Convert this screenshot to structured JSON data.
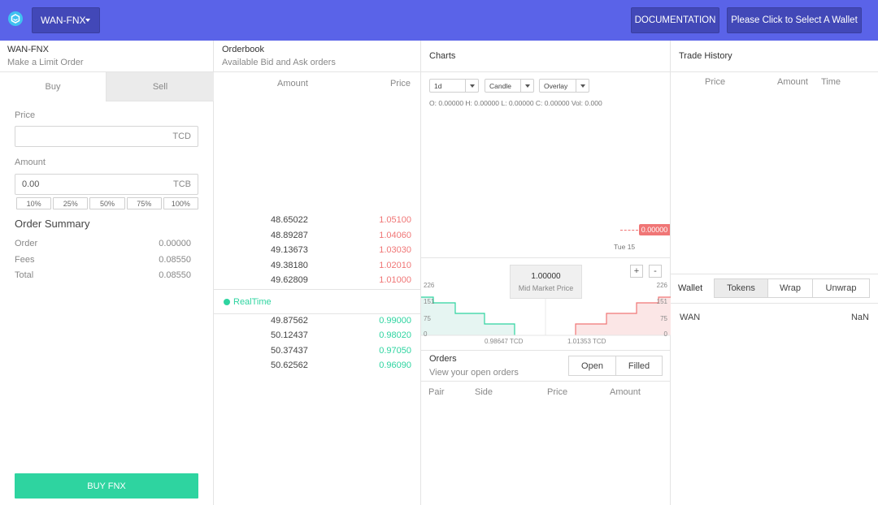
{
  "header": {
    "pair_label": "WAN-FNX",
    "documentation_label": "DOCUMENTATION",
    "wallet_label": "Please Click to Select A Wallet"
  },
  "order_form": {
    "title": "WAN-FNX",
    "subtitle": "Make a Limit Order",
    "tabs": [
      "Buy",
      "Sell"
    ],
    "price_label": "Price",
    "price_value": "",
    "price_unit": "TCD",
    "amount_label": "Amount",
    "amount_value": "0.00",
    "amount_unit": "TCB",
    "percent_buttons": [
      "10%",
      "25%",
      "50%",
      "75%",
      "100%"
    ],
    "summary_title": "Order Summary",
    "summary": [
      {
        "label": "Order",
        "value": "0.00000"
      },
      {
        "label": "Fees",
        "value": "0.08550"
      },
      {
        "label": "Total",
        "value": "0.08550"
      }
    ],
    "submit_label": "BUY FNX"
  },
  "orderbook": {
    "title": "Orderbook",
    "subtitle": "Available Bid and Ask orders",
    "headers": {
      "amount": "Amount",
      "price": "Price"
    },
    "asks": [
      {
        "amount": "48.65022",
        "price": "1.05100"
      },
      {
        "amount": "48.89287",
        "price": "1.04060"
      },
      {
        "amount": "49.13673",
        "price": "1.03030"
      },
      {
        "amount": "49.38180",
        "price": "1.02010"
      },
      {
        "amount": "49.62809",
        "price": "1.01000"
      }
    ],
    "realtime_label": "RealTime",
    "bids": [
      {
        "amount": "49.87562",
        "price": "0.99000"
      },
      {
        "amount": "50.12437",
        "price": "0.98020"
      },
      {
        "amount": "50.37437",
        "price": "0.97050"
      },
      {
        "amount": "50.62562",
        "price": "0.96090"
      }
    ]
  },
  "charts": {
    "title": "Charts",
    "interval": "1d",
    "chart_type": "Candle",
    "overlay": "Overlay",
    "ohlc": "O: 0.00000   H: 0.00000   L: 0.00000   C: 0.00000   Vol: 0.000",
    "price_tag": "0.00000",
    "date_label": "Tue 15",
    "mid_market_value": "1.00000",
    "mid_market_label": "Mid Market Price",
    "zoom_in": "+",
    "zoom_out": "-",
    "depth": {
      "left_axis": [
        "226",
        "151",
        "75",
        "0"
      ],
      "right_axis": [
        "226",
        "151",
        "75",
        "0"
      ],
      "bid_edge_label": "0.98647 TCD",
      "ask_edge_label": "1.01353 TCD",
      "bid_color": "#2ed4a0",
      "ask_color": "#f07676"
    }
  },
  "orders": {
    "title": "Orders",
    "subtitle": "View your open orders",
    "tabs": [
      "Open",
      "Filled"
    ],
    "headers": [
      "Pair",
      "Side",
      "Price",
      "Amount"
    ]
  },
  "trade_history": {
    "title": "Trade History",
    "headers": [
      "Price",
      "Amount",
      "Time"
    ]
  },
  "wallet": {
    "label": "Wallet",
    "tabs": [
      "Tokens",
      "Wrap",
      "Unwrap"
    ],
    "rows": [
      {
        "token": "WAN",
        "balance": "NaN"
      }
    ]
  },
  "colors": {
    "header_bg": "#5a63e8",
    "accent_green": "#2ed4a0",
    "accent_red": "#f07676"
  }
}
